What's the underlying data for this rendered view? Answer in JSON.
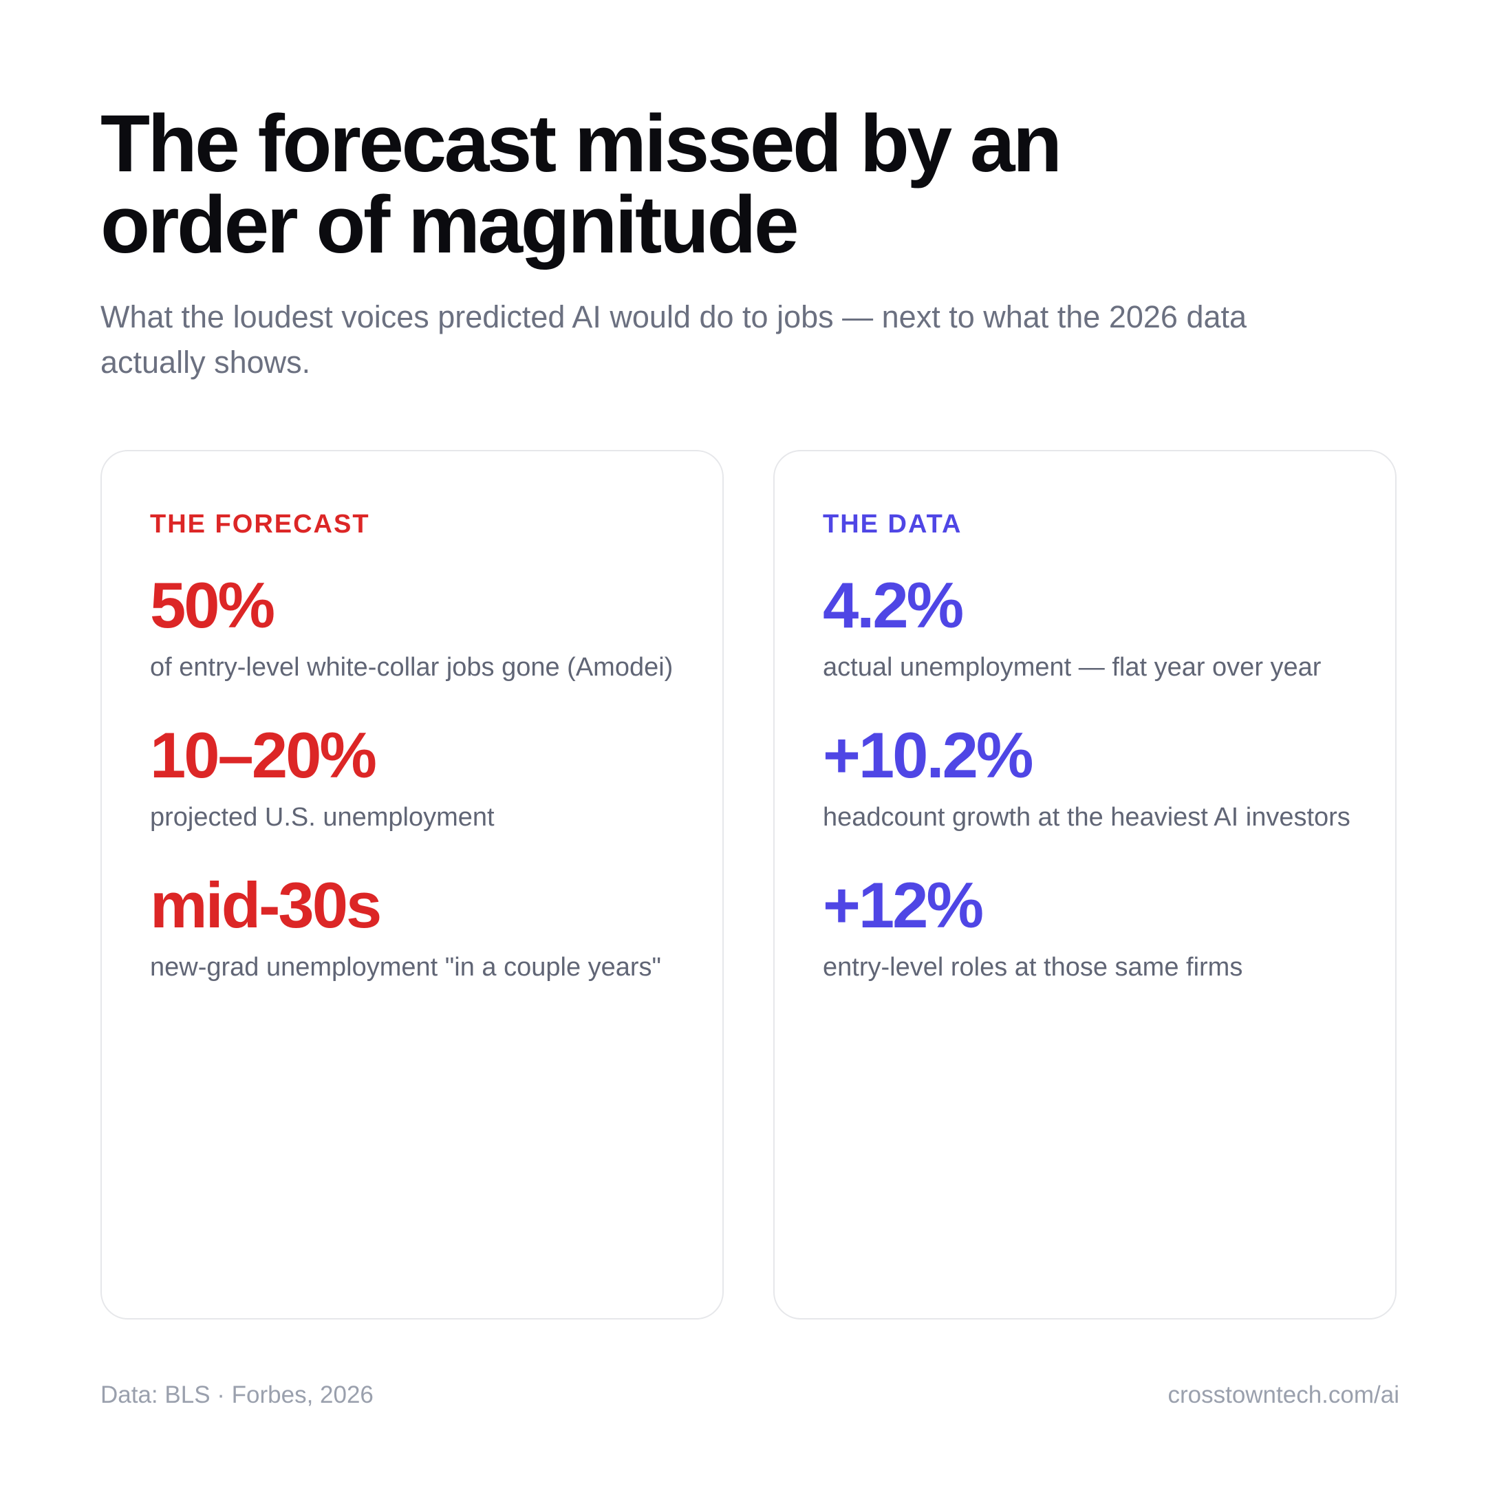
{
  "header": {
    "title": "The forecast missed by an order of magnitude",
    "subtitle": "What the loudest voices predicted AI would do to jobs — next to what the 2026 data actually shows."
  },
  "colors": {
    "forecast_accent": "#dc2626",
    "data_accent": "#4f46e5",
    "title_text": "#0b0b0f",
    "muted_text": "#6b7080",
    "card_border": "#e6e7ea"
  },
  "forecast": {
    "label": "THE FORECAST",
    "stats": [
      {
        "value": "50%",
        "desc": "of entry-level white-collar jobs gone (Amodei)"
      },
      {
        "value": "10–20%",
        "desc": "projected U.S. unemployment"
      },
      {
        "value": "mid-30s",
        "desc": "new-grad unemployment \"in a couple years\""
      }
    ]
  },
  "data": {
    "label": "THE DATA",
    "stats": [
      {
        "value": "4.2%",
        "desc": "actual unemployment — flat year over year"
      },
      {
        "value": "+10.2%",
        "desc": "headcount growth at the heaviest AI investors"
      },
      {
        "value": "+12%",
        "desc": "entry-level roles at those same firms"
      }
    ]
  },
  "footer": {
    "source": "Data: BLS · Forbes, 2026",
    "site": "crosstowntech.com/ai"
  }
}
